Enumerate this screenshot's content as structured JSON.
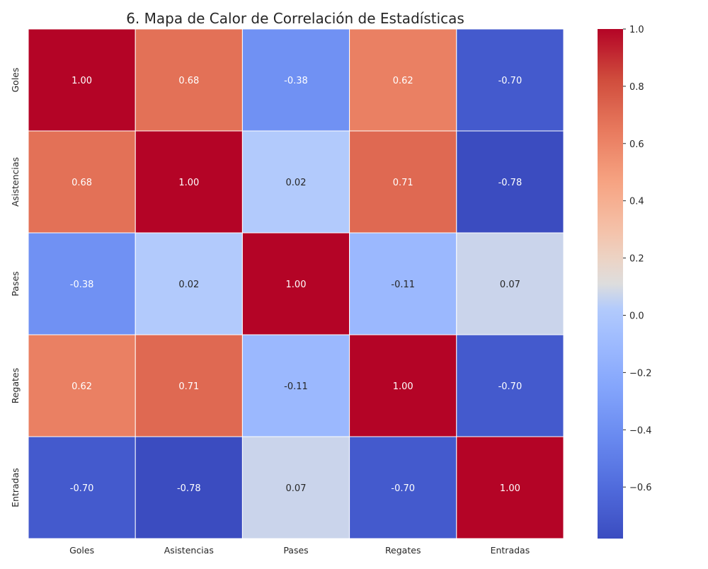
{
  "chart_data": {
    "type": "heatmap",
    "title": "6. Mapa de Calor de Correlación de Estadísticas",
    "row_labels": [
      "Goles",
      "Asistencias",
      "Pases",
      "Regates",
      "Entradas"
    ],
    "col_labels": [
      "Goles",
      "Asistencias",
      "Pases",
      "Regates",
      "Entradas"
    ],
    "values": [
      [
        1.0,
        0.68,
        -0.38,
        0.62,
        -0.7
      ],
      [
        0.68,
        1.0,
        0.02,
        0.71,
        -0.78
      ],
      [
        -0.38,
        0.02,
        1.0,
        -0.11,
        0.07
      ],
      [
        0.62,
        0.71,
        -0.11,
        1.0,
        -0.7
      ],
      [
        -0.7,
        -0.78,
        0.07,
        -0.7,
        1.0
      ]
    ],
    "value_format": "0.00",
    "colormap": "coolwarm",
    "vmin": -0.78,
    "vmax": 1.0,
    "colorbar": {
      "ticks": [
        1.0,
        0.8,
        0.6,
        0.4,
        0.2,
        0.0,
        -0.2,
        -0.4,
        -0.6
      ],
      "tick_labels": [
        "1.0",
        "0.8",
        "0.6",
        "0.4",
        "0.2",
        "0.0",
        "−0.2",
        "−0.4",
        "−0.6"
      ],
      "placement": "right"
    },
    "grid": true,
    "grid_color": "#ffffff"
  }
}
